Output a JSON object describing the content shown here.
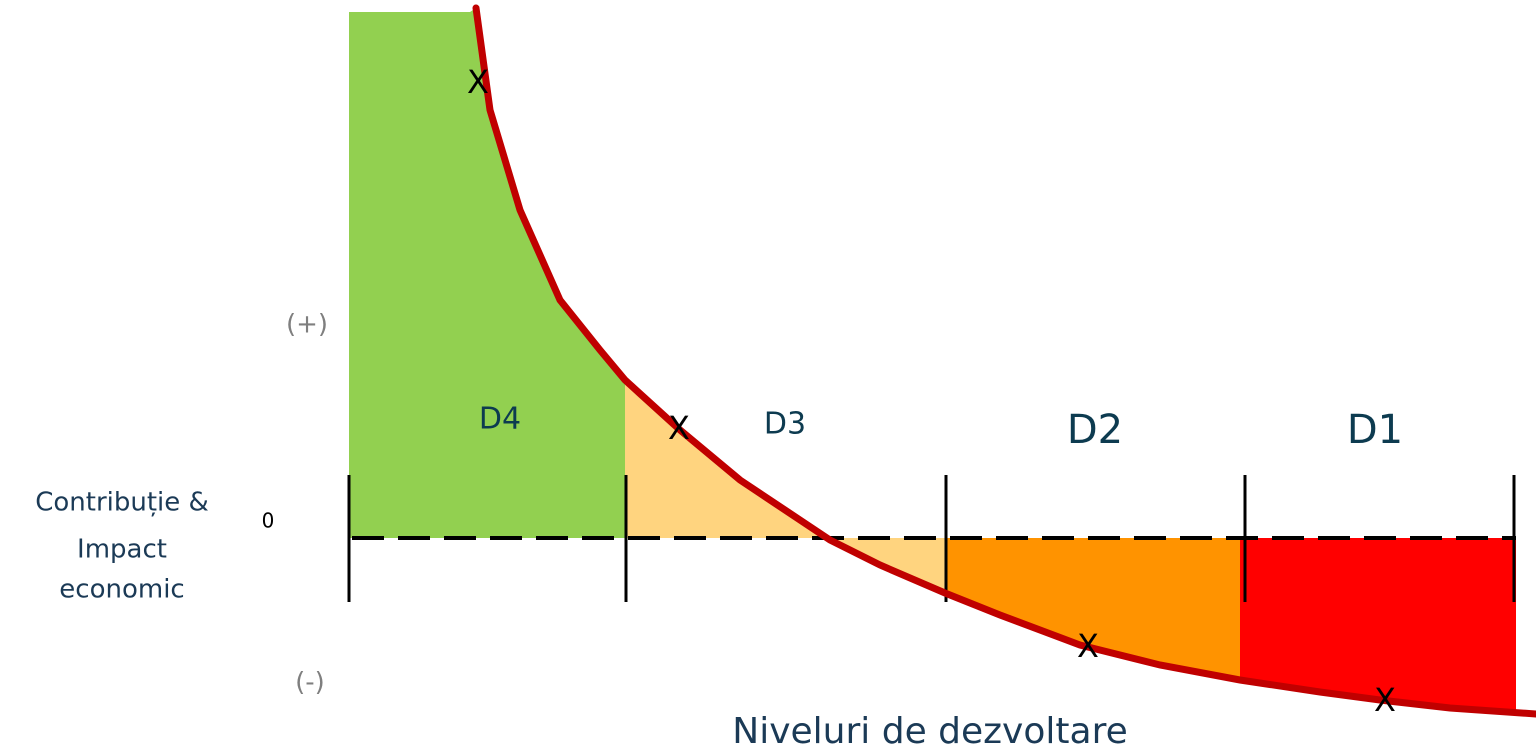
{
  "axis_labels": {
    "positive": "(+)",
    "negative": "(-)",
    "zero": "0"
  },
  "y_label": [
    "Contribuție &",
    "Impact",
    "economic"
  ],
  "levels": [
    "D4",
    "D3",
    "D2",
    "D1"
  ],
  "markers": [
    "X",
    "X",
    "X",
    "X"
  ],
  "x_label": "Niveluri de dezvoltare"
}
